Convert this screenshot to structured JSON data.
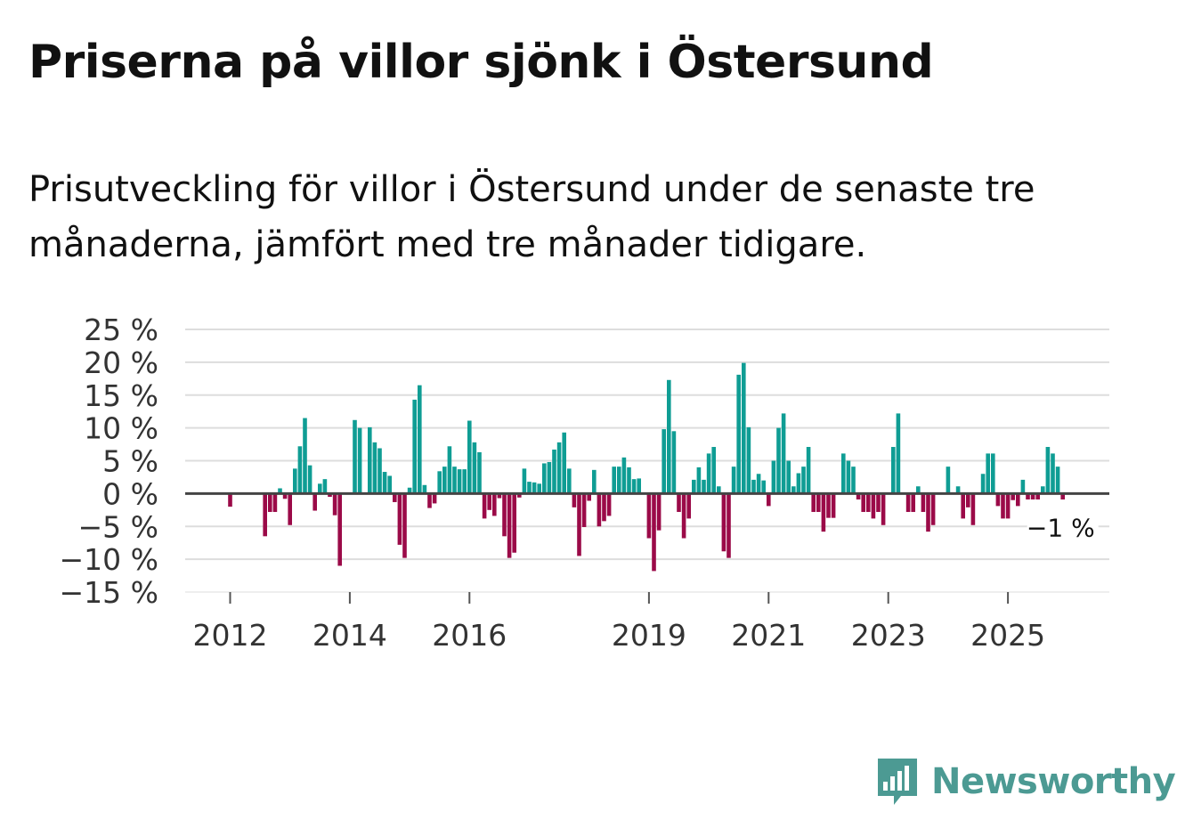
{
  "header": {
    "title": "Priserna på villor sjönk i Östersund",
    "subtitle": "Prisutveckling för villor i Östersund under de senaste tre månaderna, jämfört med tre månader tidigare."
  },
  "brand": {
    "name": "Newsworthy",
    "icon": "newsworthy-logo-icon"
  },
  "colors": {
    "positive": "#0f9d94",
    "negative": "#9b0a48",
    "grid": "#dddddd",
    "zero_line": "#444444",
    "brand": "#4c9a93"
  },
  "chart_data": {
    "type": "bar",
    "title": "Priserna på villor sjönk i Östersund",
    "xlabel": "",
    "ylabel": "",
    "ylim": [
      -15,
      25
    ],
    "y_ticks": [
      25,
      20,
      15,
      10,
      5,
      0,
      -5,
      -10,
      -15
    ],
    "y_tick_labels": [
      "25 %",
      "20 %",
      "15 %",
      "10 %",
      "5 %",
      "0 %",
      "−5 %",
      "−10 %",
      "−15 %"
    ],
    "x_tick_labels": [
      "2012",
      "2014",
      "2016",
      "2019",
      "2021",
      "2023",
      "2025"
    ],
    "x_tick_positions": [
      0,
      24,
      48,
      84,
      108,
      132,
      156
    ],
    "category_start": "2012-01",
    "category_step": "month",
    "values": [
      -2,
      0,
      0,
      0,
      0,
      0,
      0,
      -6.5,
      -2.8,
      -2.8,
      0.8,
      -0.8,
      -4.8,
      3.8,
      7.2,
      11.5,
      4.3,
      -2.6,
      1.5,
      2.2,
      -0.5,
      -3.3,
      -11,
      0,
      0,
      11.2,
      10,
      0,
      10.1,
      7.8,
      6.9,
      3.3,
      2.7,
      -1.3,
      -7.8,
      -9.8,
      0.9,
      14.3,
      16.5,
      1.3,
      -2.2,
      -1.5,
      3.4,
      4.1,
      7.2,
      4.1,
      3.7,
      3.7,
      11.1,
      7.8,
      6.3,
      -3.8,
      -2.5,
      -3.4,
      -0.7,
      -6.5,
      -9.8,
      -9,
      -0.6,
      3.8,
      1.8,
      1.7,
      1.5,
      4.6,
      4.8,
      6.7,
      7.8,
      9.3,
      3.8,
      -2.1,
      -9.5,
      -5.1,
      -1.1,
      3.6,
      -5,
      -4.2,
      -3.4,
      4.1,
      4.1,
      5.5,
      4,
      2.2,
      2.3,
      0,
      -6.8,
      -11.8,
      -5.6,
      9.8,
      17.3,
      9.5,
      -2.8,
      -6.8,
      -3.8,
      2.1,
      4,
      2.1,
      6.1,
      7.1,
      1.1,
      -8.8,
      -9.8,
      4.1,
      18.1,
      19.9,
      10.1,
      2.1,
      3,
      2,
      -1.9,
      5,
      10,
      12.2,
      5,
      1.1,
      3.1,
      4.1,
      7.1,
      -2.8,
      -2.8,
      -5.8,
      -3.7,
      -3.7,
      0,
      6.1,
      5,
      4.1,
      -0.9,
      -2.8,
      -2.8,
      -3.8,
      -2.8,
      -4.8,
      0,
      7.1,
      12.2,
      0,
      -2.8,
      -2.8,
      1.1,
      -2.8,
      -5.8,
      -4.8,
      0,
      0,
      4.1,
      0,
      1.1,
      -3.8,
      -2.1,
      -4.8,
      0,
      3,
      6.1,
      6.1,
      -1.9,
      -3.8,
      -3.8,
      -1,
      -1.9,
      2.1,
      -0.9,
      -0.9,
      -0.9,
      1.1,
      7.1,
      6.1,
      4.1,
      -0.9
    ],
    "last_value_label": "−1 %"
  }
}
